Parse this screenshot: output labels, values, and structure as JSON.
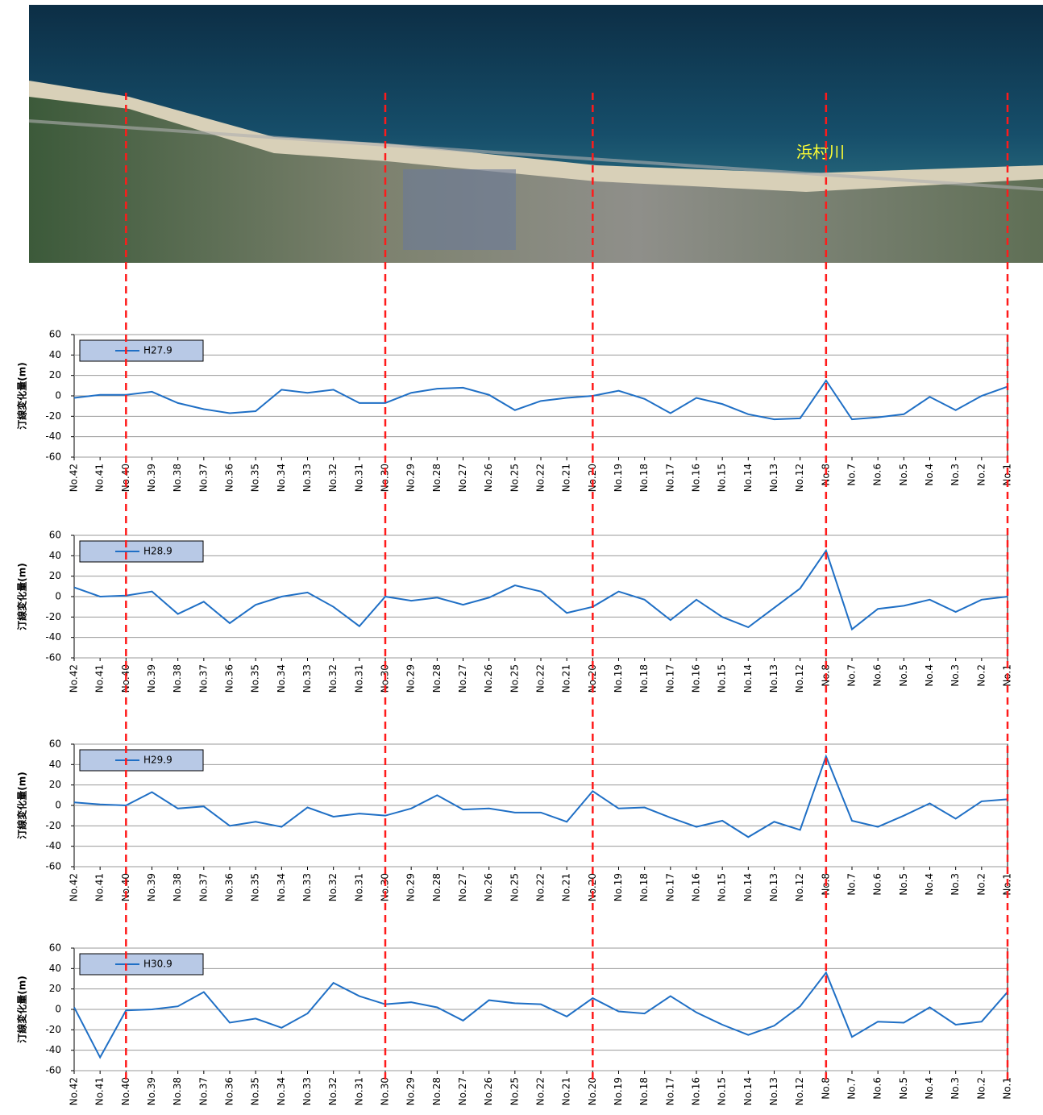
{
  "photo_label": "浜村川",
  "reference_lines": [
    "No.40",
    "No.30",
    "No.20",
    "No.8",
    "No.1"
  ],
  "chart_data": [
    {
      "type": "line",
      "ylabel": "汀線変化量(m)",
      "categories": [
        "No.42",
        "No.41",
        "No.40",
        "No.39",
        "No.38",
        "No.37",
        "No.36",
        "No.35",
        "No.34",
        "No.33",
        "No.32",
        "No.31",
        "No.30",
        "No.29",
        "No.28",
        "No.27",
        "No.26",
        "No.25",
        "No.22",
        "No.21",
        "No.20",
        "No.19",
        "No.18",
        "No.17",
        "No.16",
        "No.15",
        "No.14",
        "No.13",
        "No.12",
        "No.8",
        "No.7",
        "No.6",
        "No.5",
        "No.4",
        "No.3",
        "No.2",
        "No.1"
      ],
      "series": [
        {
          "name": "H27.9",
          "color": "#1f6fc5",
          "values": [
            -2,
            1,
            1,
            4,
            -7,
            -13,
            -17,
            -15,
            6,
            3,
            6,
            -7,
            -7,
            3,
            7,
            8,
            1,
            -14,
            -5,
            -2,
            0,
            5,
            -3,
            -17,
            -2,
            -8,
            -18,
            -23,
            -22,
            15,
            -23,
            -21,
            -18,
            -1,
            -14,
            0,
            9
          ]
        }
      ],
      "ylim": [
        -60,
        60
      ],
      "yticks": [
        -60,
        -40,
        -20,
        0,
        20,
        40,
        60
      ],
      "grid": true
    },
    {
      "type": "line",
      "ylabel": "汀線変化量(m)",
      "categories": [
        "No.42",
        "No.41",
        "No.40",
        "No.39",
        "No.38",
        "No.37",
        "No.36",
        "No.35",
        "No.34",
        "No.33",
        "No.32",
        "No.31",
        "No.30",
        "No.29",
        "No.28",
        "No.27",
        "No.26",
        "No.25",
        "No.22",
        "No.21",
        "No.20",
        "No.19",
        "No.18",
        "No.17",
        "No.16",
        "No.15",
        "No.14",
        "No.13",
        "No.12",
        "No.8",
        "No.7",
        "No.6",
        "No.5",
        "No.4",
        "No.3",
        "No.2",
        "No.1"
      ],
      "series": [
        {
          "name": "H28.9",
          "color": "#1f6fc5",
          "values": [
            9,
            0,
            1,
            5,
            -17,
            -5,
            -26,
            -8,
            0,
            4,
            -10,
            -29,
            0,
            -4,
            -1,
            -8,
            -1,
            11,
            5,
            -16,
            -10,
            5,
            -3,
            -23,
            -3,
            -20,
            -30,
            -11,
            8,
            45,
            -32,
            -12,
            -9,
            -3,
            -15,
            -3,
            0
          ]
        }
      ],
      "ylim": [
        -60,
        60
      ],
      "yticks": [
        -60,
        -40,
        -20,
        0,
        20,
        40,
        60
      ],
      "grid": true
    },
    {
      "type": "line",
      "ylabel": "汀線変化量(m)",
      "categories": [
        "No.42",
        "No.41",
        "No.40",
        "No.39",
        "No.38",
        "No.37",
        "No.36",
        "No.35",
        "No.34",
        "No.33",
        "No.32",
        "No.31",
        "No.30",
        "No.29",
        "No.28",
        "No.27",
        "No.26",
        "No.25",
        "No.22",
        "No.21",
        "No.20",
        "No.19",
        "No.18",
        "No.17",
        "No.16",
        "No.15",
        "No.14",
        "No.13",
        "No.12",
        "No.8",
        "No.7",
        "No.6",
        "No.5",
        "No.4",
        "No.3",
        "No.2",
        "No.1"
      ],
      "series": [
        {
          "name": "H29.9",
          "color": "#1f6fc5",
          "values": [
            3,
            1,
            0,
            13,
            -3,
            -1,
            -20,
            -16,
            -21,
            -2,
            -11,
            -8,
            -10,
            -3,
            10,
            -4,
            -3,
            -7,
            -7,
            -16,
            14,
            -3,
            -2,
            -12,
            -21,
            -15,
            -31,
            -16,
            -24,
            48,
            -15,
            -21,
            -10,
            2,
            -13,
            4,
            6
          ]
        }
      ],
      "ylim": [
        -60,
        60
      ],
      "yticks": [
        -60,
        -40,
        -20,
        0,
        20,
        40,
        60
      ],
      "grid": true
    },
    {
      "type": "line",
      "ylabel": "汀線変化量(m)",
      "categories": [
        "No.42",
        "No.41",
        "No.40",
        "No.39",
        "No.38",
        "No.37",
        "No.36",
        "No.35",
        "No.34",
        "No.33",
        "No.32",
        "No.31",
        "No.30",
        "No.29",
        "No.28",
        "No.27",
        "No.26",
        "No.25",
        "No.22",
        "No.21",
        "No.20",
        "No.19",
        "No.18",
        "No.17",
        "No.16",
        "No.15",
        "No.14",
        "No.13",
        "No.12",
        "No.8",
        "No.7",
        "No.6",
        "No.5",
        "No.4",
        "No.3",
        "No.2",
        "No.1"
      ],
      "series": [
        {
          "name": "H30.9",
          "color": "#1f6fc5",
          "values": [
            2,
            -47,
            -1,
            0,
            3,
            17,
            -13,
            -9,
            -18,
            -4,
            26,
            13,
            5,
            7,
            2,
            -11,
            9,
            6,
            5,
            -7,
            11,
            -2,
            -4,
            13,
            -3,
            -15,
            -25,
            -16,
            3,
            36,
            -27,
            -12,
            -13,
            2,
            -15,
            -12,
            17
          ]
        }
      ],
      "ylim": [
        -60,
        60
      ],
      "yticks": [
        -60,
        -40,
        -20,
        0,
        20,
        40,
        60
      ],
      "grid": true
    }
  ]
}
